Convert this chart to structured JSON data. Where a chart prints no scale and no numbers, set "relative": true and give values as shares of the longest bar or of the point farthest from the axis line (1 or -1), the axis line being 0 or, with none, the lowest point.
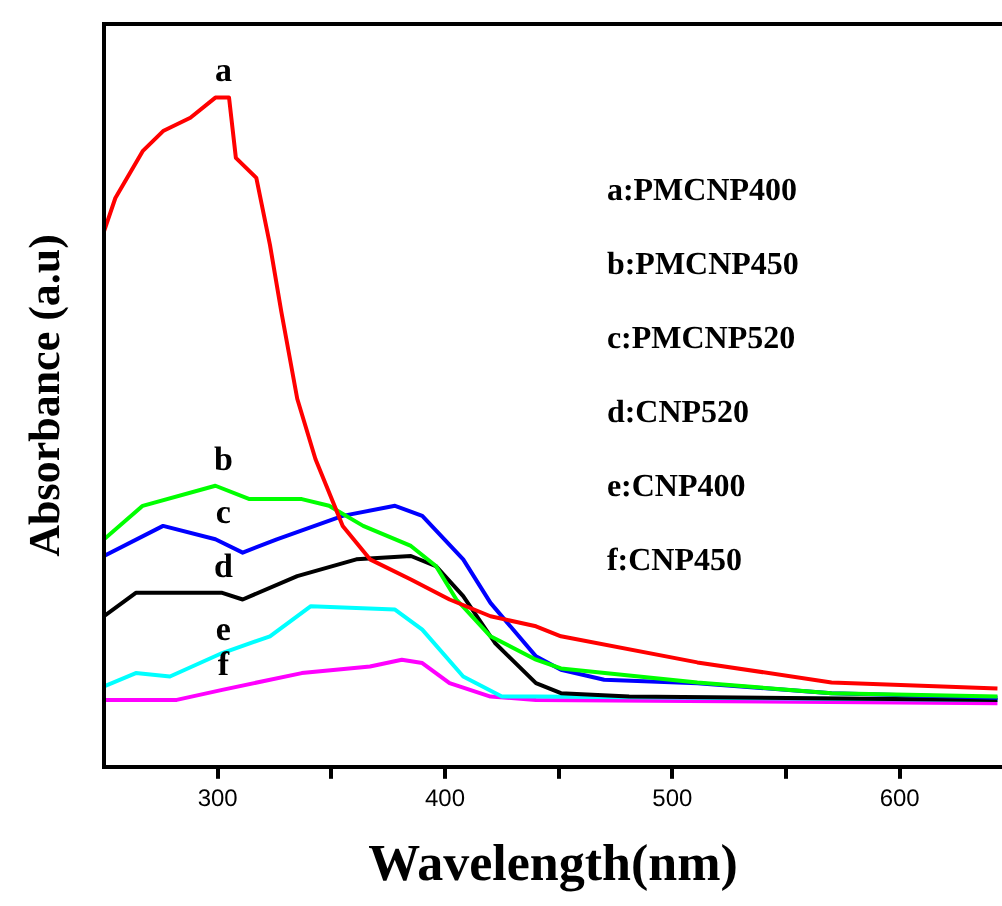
{
  "chart_data": {
    "type": "line",
    "relative": true,
    "xlabel": "Wavelength(nm)",
    "ylabel": "Absorbance (a.u)",
    "xlim": [
      250,
      645
    ],
    "xticks": [
      300,
      {
        "value": 350,
        "label": null
      },
      400,
      {
        "value": 450,
        "label": null
      },
      500,
      {
        "value": 550,
        "label": null
      },
      600
    ],
    "grid": false,
    "legend": false,
    "marker": "none",
    "line_style": "solid",
    "annotations": [
      "a:PMCNP400",
      "b:PMCNP450",
      "c:PMCNP520",
      "d:CNP520",
      "e:CNP400",
      "f:CNP450"
    ],
    "series": [
      {
        "name": "a",
        "color": "#ff0000",
        "x": [
          250,
          255,
          267,
          276,
          288,
          299,
          305,
          308,
          317,
          323,
          328,
          335,
          343,
          355,
          367,
          385,
          402,
          420,
          440,
          451,
          511,
          570,
          643
        ],
        "values": [
          0.8,
          0.85,
          0.92,
          0.95,
          0.97,
          1,
          1,
          0.91,
          0.88,
          0.78,
          0.68,
          0.55,
          0.46,
          0.36,
          0.31,
          0.28,
          0.25,
          0.225,
          0.21,
          0.195,
          0.156,
          0.126,
          0.117
        ]
      },
      {
        "name": "b",
        "color": "#00ff00",
        "x": [
          250,
          267,
          299,
          314,
          337,
          349,
          364,
          385,
          396,
          405,
          420,
          440,
          451,
          511,
          570,
          643
        ],
        "values": [
          0.34,
          0.39,
          0.42,
          0.4,
          0.4,
          0.39,
          0.36,
          0.33,
          0.3,
          0.25,
          0.195,
          0.16,
          0.147,
          0.126,
          0.11,
          0.105
        ]
      },
      {
        "name": "c",
        "color": "#0000ff",
        "x": [
          250,
          276,
          299,
          311,
          326,
          355,
          378,
          390,
          408,
          420,
          440,
          451,
          470,
          511,
          570,
          643
        ],
        "values": [
          0.315,
          0.36,
          0.34,
          0.32,
          0.34,
          0.375,
          0.39,
          0.375,
          0.31,
          0.245,
          0.165,
          0.145,
          0.13,
          0.125,
          0.11,
          0.103
        ]
      },
      {
        "name": "d",
        "color": "#000000",
        "x": [
          250,
          264,
          302,
          311,
          335,
          361,
          385,
          396,
          408,
          422,
          440,
          451,
          481,
          643
        ],
        "values": [
          0.225,
          0.26,
          0.26,
          0.25,
          0.285,
          0.31,
          0.315,
          0.3,
          0.255,
          0.185,
          0.125,
          0.11,
          0.105,
          0.1
        ]
      },
      {
        "name": "e",
        "color": "#00ffff",
        "x": [
          250,
          264,
          279,
          302,
          323,
          341,
          378,
          390,
          408,
          425,
          440,
          643
        ],
        "values": [
          0.12,
          0.14,
          0.135,
          0.17,
          0.195,
          0.24,
          0.235,
          0.205,
          0.135,
          0.105,
          0.105,
          0.1
        ]
      },
      {
        "name": "f",
        "color": "#ff00ff",
        "x": [
          250,
          282,
          302,
          337,
          367,
          381,
          390,
          402,
          420,
          440,
          643
        ],
        "values": [
          0.1,
          0.1,
          0.115,
          0.14,
          0.15,
          0.16,
          0.155,
          0.125,
          0.105,
          0.1,
          0.095
        ]
      }
    ]
  }
}
